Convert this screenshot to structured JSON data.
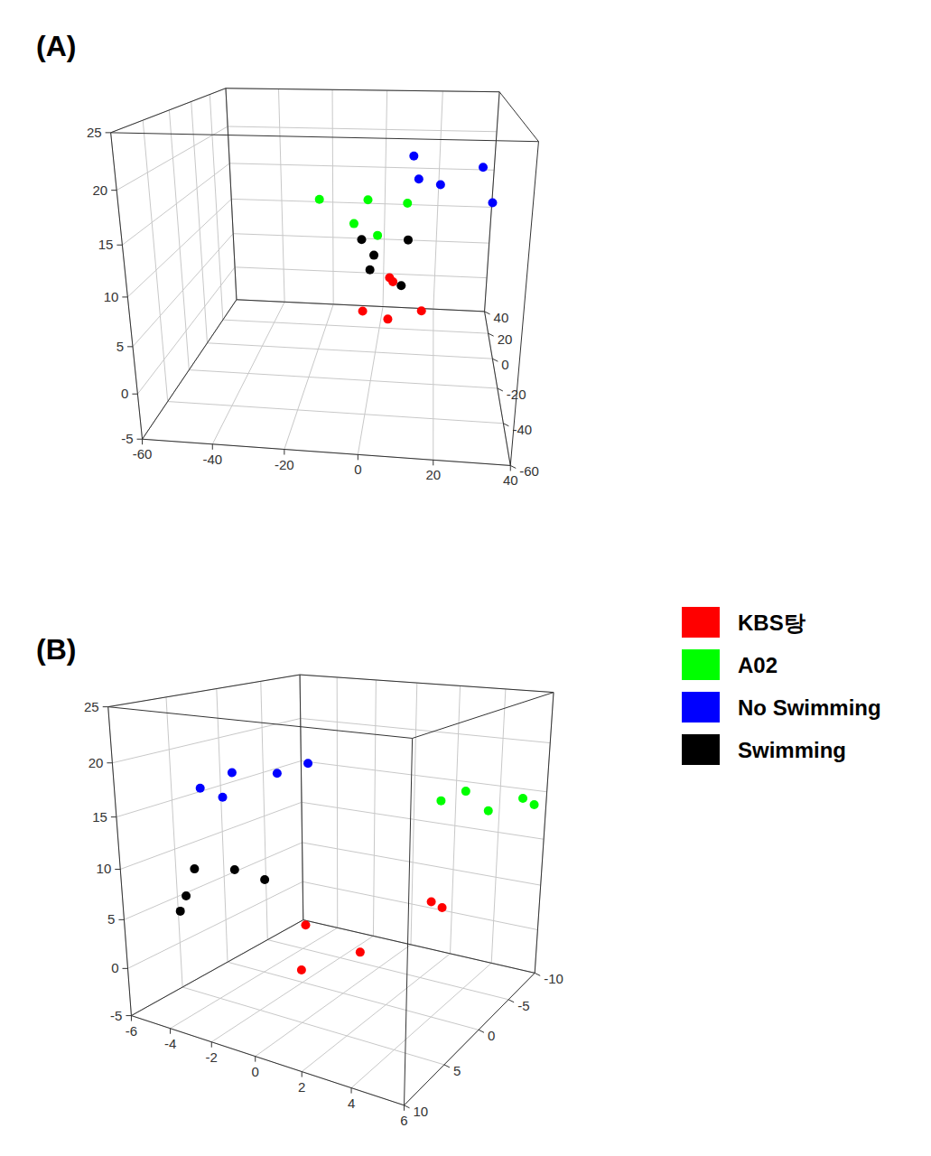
{
  "chart_data": [
    {
      "type": "scatter",
      "title": "(A)",
      "xlim": [
        -60,
        40
      ],
      "ylim": [
        -60,
        40
      ],
      "zlim": [
        -5,
        25
      ],
      "xticks": [
        -60,
        -40,
        -20,
        0,
        20,
        40
      ],
      "yticks": [
        -60,
        -40,
        -20,
        0,
        20,
        40
      ],
      "zticks": [
        -5,
        0,
        5,
        10,
        15,
        20,
        25
      ],
      "grid": true,
      "series": [
        {
          "color": "#ff0000",
          "x": [
            4.9,
            6.1,
            -2.7,
            5.4,
            15.4
          ],
          "y": [
            -10,
            -12,
            -20,
            -25,
            -15
          ],
          "z": [
            6.2,
            6.0,
            3.5,
            3.5,
            3.1
          ]
        },
        {
          "color": "#00ff00",
          "x": [
            -19,
            -2.7,
            -6.6,
            1.2,
            9.5
          ],
          "y": [
            0,
            -5,
            -10,
            -15,
            5
          ],
          "z": [
            14.1,
            14.7,
            12.4,
            11.7,
            13.5
          ]
        },
        {
          "color": "#0000ff",
          "x": [
            11,
            13,
            20,
            34,
            36
          ],
          "y": [
            10,
            0,
            5,
            15,
            -5
          ],
          "z": [
            18.7,
            16.8,
            15.8,
            17.2,
            14.8
          ]
        },
        {
          "color": "#000000",
          "x": [
            -4.6,
            -0.2,
            -1,
            10.2,
            9
          ],
          "y": [
            -5,
            -10,
            -15,
            0,
            -20
          ],
          "z": [
            10,
            8.8,
            7.7,
            9.6,
            6.7
          ]
        }
      ]
    },
    {
      "type": "scatter",
      "title": "(B)",
      "xlim": [
        -6,
        6
      ],
      "ylim": [
        -10,
        10
      ],
      "zlim": [
        -5,
        25
      ],
      "xticks": [
        -6,
        -4,
        -2,
        0,
        2,
        4,
        6
      ],
      "yticks": [
        -10,
        -5,
        0,
        5,
        10
      ],
      "zticks": [
        -5,
        0,
        5,
        10,
        15,
        20,
        25
      ],
      "grid": true,
      "legend": "right",
      "series": [
        {
          "name": "KBS탕",
          "color": "#ff0000",
          "x": [
            -1,
            0,
            1.5,
            3,
            3.2
          ],
          "y": [
            2,
            5,
            2,
            -3,
            -4
          ],
          "z": [
            3,
            0.5,
            1.5,
            5,
            4
          ]
        },
        {
          "name": "A02",
          "color": "#00ff00",
          "x": [
            3,
            3.5,
            4,
            5,
            5.5
          ],
          "y": [
            -4,
            -6,
            -8,
            -10,
            -10
          ],
          "z": [
            15,
            15.5,
            13,
            14,
            13.5
          ]
        },
        {
          "name": "No Swimming",
          "color": "#0000ff",
          "x": [
            -3,
            -2.5,
            -2,
            -0.5,
            0
          ],
          "y": [
            8,
            6,
            8,
            6,
            4
          ],
          "z": [
            18,
            19,
            17.5,
            19.5,
            20
          ]
        },
        {
          "name": "Swimming",
          "color": "#000000",
          "x": [
            -4.5,
            -3.5,
            -2.5,
            -5,
            -4.8
          ],
          "y": [
            6,
            4,
            3,
            6,
            7
          ],
          "z": [
            9,
            8.5,
            7.5,
            6,
            5
          ]
        }
      ]
    }
  ]
}
